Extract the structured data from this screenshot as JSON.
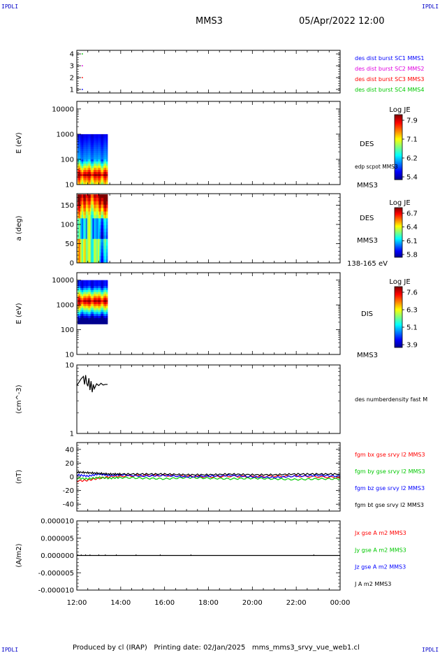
{
  "corners": {
    "top_left": "IPDLI",
    "top_right": "IPDLI",
    "bottom_left": "IPDLI",
    "bottom_right": "IPDLI"
  },
  "header": {
    "spacecraft": "MMS3",
    "datetime": "05/Apr/2022 12:00"
  },
  "footer": {
    "text": "Produced by cl (IRAP)   Printing date: 02/Jan/2025   mms_mms3_srvy_vue_web1.cl"
  },
  "time_axis": {
    "start_hour": 12,
    "end_hour": 24,
    "ticks": [
      "12:00",
      "14:00",
      "16:00",
      "18:00",
      "20:00",
      "22:00",
      "00:00"
    ],
    "data_end_hour": 13.4
  },
  "colors": {
    "red": "#ff0000",
    "green": "#00c800",
    "blue": "#0000ff",
    "magenta": "#e000e0",
    "black": "#000000"
  },
  "chart_data": [
    {
      "type": "scatter",
      "id": "burst",
      "yticks": [
        "1",
        "2",
        "3",
        "4"
      ],
      "ylim": [
        0.7,
        4.3
      ],
      "legend": [
        {
          "label": "des dist burst SC1 MMS1",
          "color": "#0000ff"
        },
        {
          "label": "des dist burst SC2 MMS2",
          "color": "#e000e0"
        },
        {
          "label": "des dist burst SC3 MMS3",
          "color": "#ff0000"
        },
        {
          "label": "des dist burst SC4 MMS4",
          "color": "#00c800"
        }
      ],
      "points": [
        {
          "x": 12.25,
          "y": 4,
          "color": "#00c800"
        },
        {
          "x": 12.25,
          "y": 3,
          "color": "#e000e0"
        },
        {
          "x": 12.25,
          "y": 2,
          "color": "#ff0000"
        },
        {
          "x": 12.25,
          "y": 1,
          "color": "#0000ff"
        }
      ]
    },
    {
      "type": "heatmap",
      "id": "des_energy",
      "ylabel": "E (eV)",
      "scale": "log",
      "ylim": [
        10,
        20000
      ],
      "yticks": [
        "10",
        "100",
        "1000",
        "10000"
      ],
      "labels": [
        "DES",
        "edp scpot MMS3",
        "MMS3"
      ],
      "colorbar": {
        "title": "Log JE",
        "ticks": [
          "7.9",
          "7.1",
          "6.2",
          "5.4"
        ],
        "min": 5.4,
        "max": 7.9
      }
    },
    {
      "type": "heatmap",
      "id": "des_pitch",
      "ylabel": "a (deg)",
      "ylim": [
        0,
        180
      ],
      "yticks": [
        "0",
        "50",
        "100",
        "150"
      ],
      "labels": [
        "DES",
        "MMS3",
        "138-165 eV"
      ],
      "colorbar": {
        "title": "Log JE",
        "ticks": [
          "6.7",
          "6.4",
          "6.1",
          "5.8"
        ],
        "min": 5.8,
        "max": 6.7
      }
    },
    {
      "type": "heatmap",
      "id": "dis_energy",
      "ylabel": "E (eV)",
      "scale": "log",
      "ylim": [
        10,
        20000
      ],
      "yticks": [
        "10",
        "100",
        "1000",
        "10000"
      ],
      "labels": [
        "DIS",
        "MMS3"
      ],
      "colorbar": {
        "title": "Log JE",
        "ticks": [
          "7.6",
          "6.3",
          "5.1",
          "3.9"
        ],
        "min": 3.9,
        "max": 7.6
      }
    },
    {
      "type": "line",
      "id": "density",
      "ylabel": "(cm^-3)",
      "scale": "log",
      "ylim": [
        1,
        10
      ],
      "yticks": [
        "1",
        "10"
      ],
      "legend": [
        {
          "label": "des numberdensity fast M",
          "color": "#000000"
        }
      ],
      "series": [
        {
          "color": "#000000",
          "x": [
            12.0,
            12.1,
            12.2,
            12.3,
            12.35,
            12.4,
            12.45,
            12.5,
            12.55,
            12.6,
            12.65,
            12.7,
            12.75,
            12.8,
            12.9,
            13.0,
            13.1,
            13.2,
            13.3,
            13.4
          ],
          "y": [
            5.0,
            5.6,
            6.3,
            6.8,
            5.2,
            7.1,
            5.4,
            4.9,
            6.4,
            4.3,
            5.8,
            4.0,
            5.2,
            4.5,
            5.3,
            5.0,
            5.4,
            5.1,
            5.2,
            5.2
          ]
        }
      ]
    },
    {
      "type": "line",
      "id": "fgm",
      "ylabel": "(nT)",
      "ylim": [
        -50,
        50
      ],
      "yticks": [
        "-40",
        "-20",
        "0",
        "20",
        "40"
      ],
      "legend": [
        {
          "label": "fgm bx gse srvy l2 MMS3",
          "color": "#ff0000"
        },
        {
          "label": "fgm by gse srvy l2 MMS3",
          "color": "#00c800"
        },
        {
          "label": "fgm bz gse srvy l2 MMS3",
          "color": "#0000ff"
        },
        {
          "label": "fgm bt gse srvy l2 MMS3",
          "color": "#000000"
        }
      ],
      "series": [
        {
          "name": "bx",
          "color": "#ff0000",
          "x": [
            12,
            12.5,
            13,
            13.5,
            14,
            15,
            16,
            17,
            18,
            19,
            20,
            21,
            22,
            23,
            24
          ],
          "y": [
            -6,
            -5,
            -2,
            0,
            1,
            2,
            2,
            1,
            0,
            1,
            0,
            1,
            1,
            0,
            -1
          ]
        },
        {
          "name": "by",
          "color": "#00c800",
          "x": [
            12,
            12.5,
            13,
            13.5,
            14,
            15,
            16,
            17,
            18,
            19,
            20,
            21,
            22,
            23,
            24
          ],
          "y": [
            -2,
            -3,
            -1,
            -2,
            -1,
            -2,
            -3,
            -1,
            -2,
            -3,
            -2,
            -3,
            -4,
            -3,
            -3
          ]
        },
        {
          "name": "bz",
          "color": "#0000ff",
          "x": [
            12,
            12.5,
            13,
            13.5,
            14,
            15,
            16,
            17,
            18,
            19,
            20,
            21,
            22,
            23,
            24
          ],
          "y": [
            3,
            1,
            4,
            2,
            3,
            1,
            2,
            0,
            1,
            2,
            0,
            -1,
            1,
            2,
            1
          ]
        },
        {
          "name": "bt",
          "color": "#000000",
          "x": [
            12,
            12.5,
            13,
            13.5,
            14,
            15,
            16,
            17,
            18,
            19,
            20,
            21,
            22,
            23,
            24
          ],
          "y": [
            7,
            6,
            5,
            4,
            4,
            4,
            4,
            3,
            3,
            4,
            3,
            3,
            4,
            4,
            4
          ]
        }
      ]
    },
    {
      "type": "line",
      "id": "current",
      "ylabel": "(A/m2)",
      "ylim": [
        -1e-05,
        1e-05
      ],
      "yticks": [
        "-0.000010",
        "-0.000005",
        "0.000000",
        "0.000005",
        "0.000010"
      ],
      "legend": [
        {
          "label": "Jx gse A m2 MMS3",
          "color": "#ff0000"
        },
        {
          "label": "Jy gse A m2 MMS3",
          "color": "#00c800"
        },
        {
          "label": "Jz gse A m2 MMS3",
          "color": "#0000ff"
        },
        {
          "label": "J A m2 MMS3",
          "color": "#000000"
        }
      ],
      "series": [
        {
          "name": "J",
          "color": "#000000",
          "x": [
            12,
            24
          ],
          "y": [
            0,
            0
          ]
        }
      ]
    }
  ]
}
